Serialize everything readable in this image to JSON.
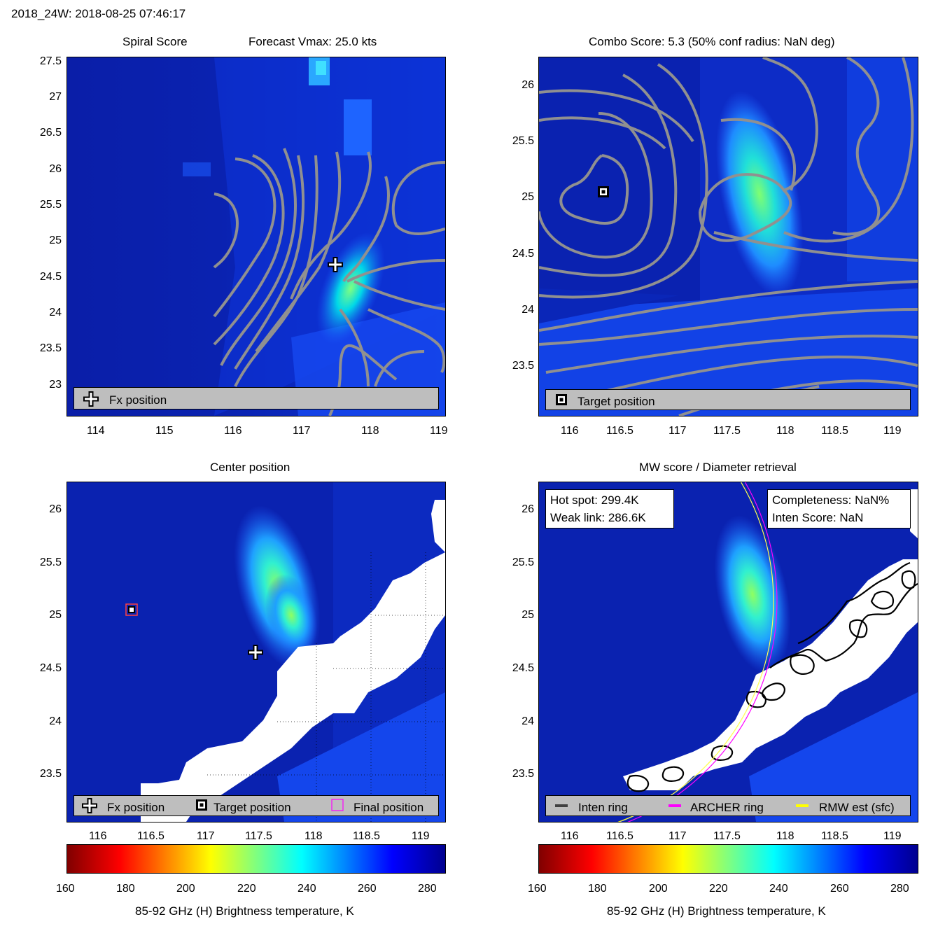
{
  "page_title": "2018_24W: 2018-08-25 07:46:17",
  "panels": {
    "spiral": {
      "title_left": "Spiral Score",
      "title_right": "Forecast Vmax: 25.0 kts",
      "xticks": [
        "114",
        "115",
        "116",
        "117",
        "118",
        "119"
      ],
      "yticks": [
        "27.5",
        "27",
        "26.5",
        "26",
        "25.5",
        "25",
        "24.5",
        "24",
        "23.5",
        "23"
      ],
      "legend": {
        "fx": "Fx position"
      }
    },
    "combo": {
      "title": "Combo Score: 5.3  (50% conf radius: NaN deg)",
      "xticks": [
        "116",
        "116.5",
        "117",
        "117.5",
        "118",
        "118.5",
        "119"
      ],
      "yticks": [
        "26",
        "25.5",
        "25",
        "24.5",
        "24",
        "23.5"
      ],
      "legend": {
        "target": "Target position"
      }
    },
    "center": {
      "title": "Center position",
      "xticks": [
        "116",
        "116.5",
        "117",
        "117.5",
        "118",
        "118.5",
        "119"
      ],
      "yticks": [
        "26",
        "25.5",
        "25",
        "24.5",
        "24",
        "23.5"
      ],
      "legend": {
        "fx": "Fx position",
        "target": "Target position",
        "final": "Final position"
      }
    },
    "mw": {
      "title": "MW score / Diameter retrieval",
      "xticks": [
        "116",
        "116.5",
        "117",
        "117.5",
        "118",
        "118.5",
        "119"
      ],
      "yticks": [
        "26",
        "25.5",
        "25",
        "24.5",
        "24",
        "23.5"
      ],
      "hot_spot": "Hot spot: 299.4K",
      "weak_link": "Weak link: 286.6K",
      "completeness": "Completeness: NaN%",
      "inten_score": "Inten Score: NaN",
      "legend": {
        "inten": "Inten ring",
        "archer": "ARCHER ring",
        "rmw": "RMW est (sfc)"
      },
      "colors": {
        "inten": "#404040",
        "archer": "#ff00ff",
        "rmw": "#ffff00"
      }
    }
  },
  "colorbar": {
    "ticks": [
      "160",
      "180",
      "200",
      "220",
      "240",
      "260",
      "280"
    ],
    "label": "85-92 GHz (H) Brightness temperature, K"
  },
  "chart_data": [
    {
      "type": "heatmap",
      "title": "Spiral Score",
      "subtitle": "Forecast Vmax: 25.0 kts",
      "xlim": [
        113.6,
        119.1
      ],
      "ylim": [
        22.55,
        27.55
      ],
      "markers": [
        {
          "name": "Fx position",
          "x": 117.45,
          "y": 24.67
        }
      ]
    },
    {
      "type": "heatmap",
      "title": "Combo Score: 5.3  (50% conf radius: NaN deg)",
      "xlim": [
        115.7,
        119.2
      ],
      "ylim": [
        23.05,
        26.25
      ],
      "markers": [
        {
          "name": "Target position",
          "x": 116.3,
          "y": 25.05
        }
      ]
    },
    {
      "type": "heatmap",
      "title": "Center position",
      "xlim": [
        115.7,
        119.2
      ],
      "ylim": [
        23.05,
        26.25
      ],
      "markers": [
        {
          "name": "Fx position",
          "x": 117.45,
          "y": 24.65
        },
        {
          "name": "Target position",
          "x": 116.3,
          "y": 25.03
        },
        {
          "name": "Final position",
          "x": 116.3,
          "y": 25.03
        }
      ]
    },
    {
      "type": "heatmap",
      "title": "MW score / Diameter retrieval",
      "xlim": [
        115.7,
        119.2
      ],
      "ylim": [
        23.05,
        26.25
      ],
      "colorbar": {
        "min": 160,
        "max": 285,
        "label": "85-92 GHz (H) Brightness temperature, K"
      }
    }
  ]
}
